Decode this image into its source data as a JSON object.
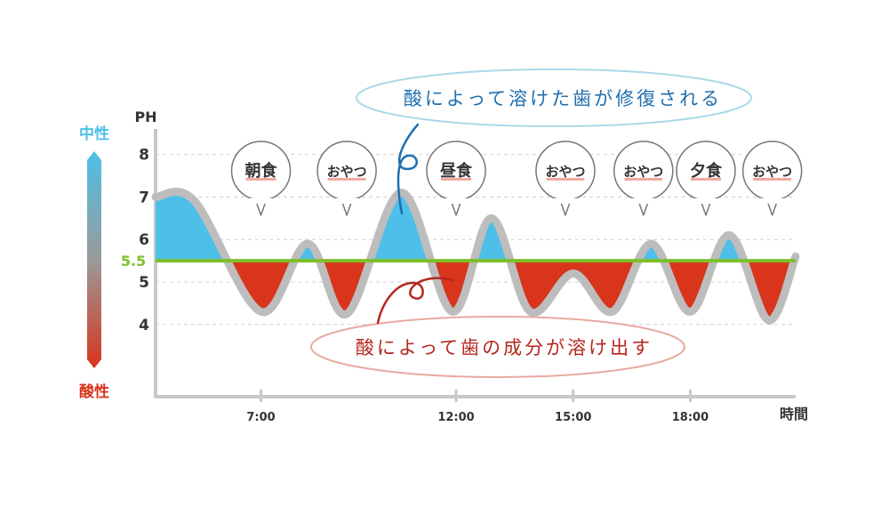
{
  "colors": {
    "neutral": "#4dbfe8",
    "acidic": "#d9341c",
    "threshold": "#7dbf2a",
    "curve": "#bdbdbd",
    "axis": "#c8c8c8",
    "text": "#333333",
    "repair_text": "#1f6fae",
    "repair_border": "#a9d8e8",
    "dissolve_text": "#b5261e",
    "dissolve_border": "#e8a9a0"
  },
  "scale": {
    "neutral_label": "中性",
    "acidic_label": "酸性"
  },
  "callouts": {
    "repair": "酸によって溶けた歯が修復される",
    "dissolve": "酸によって歯の成分が溶け出す"
  },
  "chart_data": {
    "type": "area",
    "title": "",
    "xlabel": "時間",
    "ylabel": "PH",
    "ylim": [
      2.3,
      8.6
    ],
    "yticks": [
      4,
      5,
      6,
      7,
      8
    ],
    "threshold": {
      "label": "5.5",
      "value": 5.5
    },
    "xticks": [
      {
        "label": "7:00",
        "value": 7
      },
      {
        "label": "12:00",
        "value": 12
      },
      {
        "label": "15:00",
        "value": 15
      },
      {
        "label": "18:00",
        "value": 18
      }
    ],
    "xlim": [
      4.3,
      20.7
    ],
    "events": [
      {
        "label": "朝食",
        "time": 7
      },
      {
        "label": "おやつ",
        "time": 9.2
      },
      {
        "label": "昼食",
        "time": 12
      },
      {
        "label": "おやつ",
        "time": 14.8
      },
      {
        "label": "おやつ",
        "time": 16.8
      },
      {
        "label": "夕食",
        "time": 18.4
      },
      {
        "label": "おやつ",
        "time": 20.1
      }
    ],
    "series": [
      {
        "x": [
          4.3,
          5.3,
          7.0,
          8.2,
          9.2,
          10.6,
          11.9,
          12.9,
          13.9,
          15.0,
          16.0,
          17.0,
          18.0,
          19.0,
          20.0,
          20.7
        ],
        "values": [
          7.0,
          6.9,
          4.3,
          5.9,
          4.25,
          7.1,
          4.3,
          6.5,
          4.3,
          5.2,
          4.3,
          5.9,
          4.3,
          6.1,
          4.1,
          5.6
        ]
      }
    ]
  }
}
